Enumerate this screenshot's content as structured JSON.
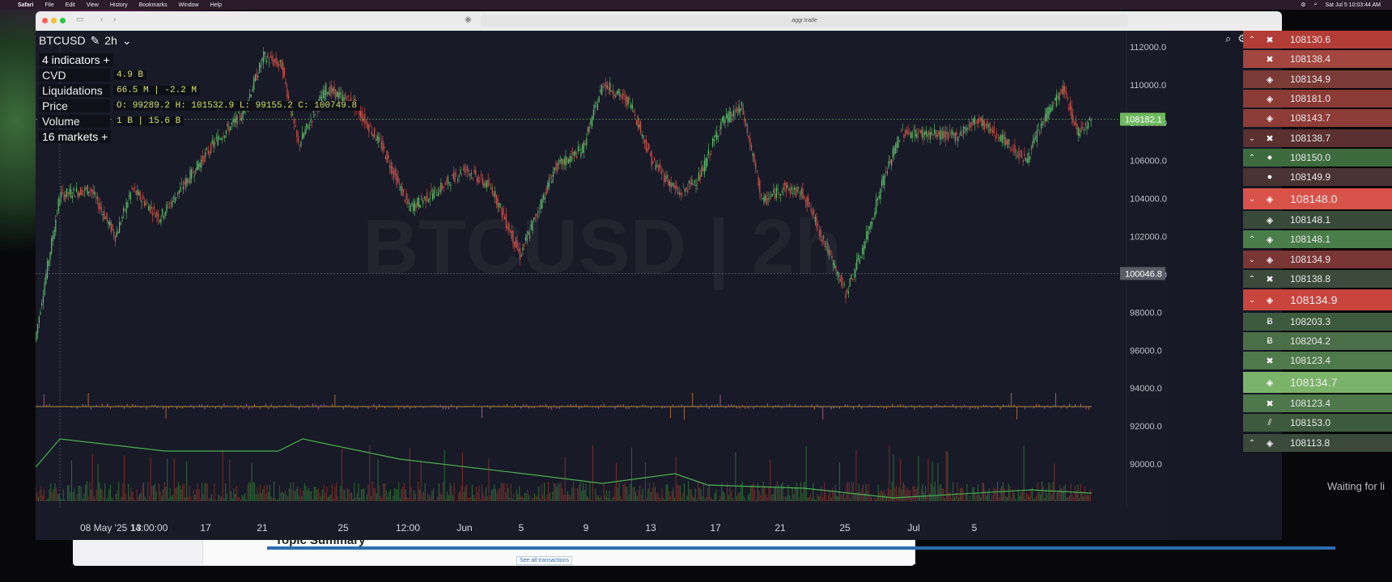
{
  "menubar": {
    "items": [
      "Safari",
      "File",
      "Edit",
      "View",
      "History",
      "Bookmarks",
      "Window",
      "Help"
    ],
    "datetime": "Sat Jul 5  10:03:44 AM"
  },
  "browser": {
    "url": "aggr.trade"
  },
  "chart": {
    "symbol": "BTCUSD",
    "timeframe": "2h",
    "watermark": "BTCUSD  |  2h",
    "indicators_header": "4 indicators",
    "markets_header": "16 markets",
    "indicators": [
      {
        "label": "CVD",
        "value": "4.9 B"
      },
      {
        "label": "Liquidations",
        "value": "66.5 M | -2.2 M"
      },
      {
        "label": "Price",
        "value": "O: 99289.2 H: 101532.9 L: 99155.2 C: 100749.8"
      },
      {
        "label": "Volume",
        "value": "1 B | 15.6 B"
      }
    ],
    "price_labels": [
      "112000.0",
      "110000.0",
      "108000.0",
      "106000.0",
      "104000.0",
      "102000.0",
      "100000.0",
      "98000.0",
      "96000.0",
      "94000.0",
      "92000.0",
      "90000.0"
    ],
    "current_price": "108182.1",
    "crosshair_price": "100046.8",
    "time_labels": [
      "08 May '25  14:00:00",
      "13",
      "17",
      "21",
      "25",
      "12:00",
      "Jun",
      "5",
      "9",
      "13",
      "17",
      "21",
      "25",
      "Jul",
      "5"
    ],
    "colors": {
      "up": "#5fbf6b",
      "down": "#d6524a",
      "bg": "#181a27",
      "cvd": "#4caf50"
    }
  },
  "trades": [
    {
      "dir": "up",
      "ex": "okx",
      "price": "108130.6",
      "bg": "#b23c36"
    },
    {
      "dir": "",
      "ex": "okx",
      "price": "108138.4",
      "bg": "#a3463f"
    },
    {
      "dir": "",
      "ex": "binance",
      "price": "108134.9",
      "bg": "#7a3a36"
    },
    {
      "dir": "",
      "ex": "binance",
      "price": "108181.0",
      "bg": "#8b3b36"
    },
    {
      "dir": "",
      "ex": "binance",
      "price": "108143.7",
      "bg": "#8d3c38"
    },
    {
      "dir": "down",
      "ex": "okx",
      "price": "108138.7",
      "bg": "#5a3030"
    },
    {
      "dir": "up",
      "ex": "coinbase",
      "price": "108150.0",
      "bg": "#3d6b3e"
    },
    {
      "dir": "",
      "ex": "coinbase",
      "price": "108149.9",
      "bg": "#4a3333"
    },
    {
      "dir": "down",
      "ex": "binance",
      "price": "108148.0",
      "bg": "#d9524a",
      "big": true
    },
    {
      "dir": "",
      "ex": "binance",
      "price": "108148.1",
      "bg": "#3a4a3a"
    },
    {
      "dir": "up",
      "ex": "binance",
      "price": "108148.1",
      "bg": "#4a7d4a"
    },
    {
      "dir": "down",
      "ex": "binance",
      "price": "108134.9",
      "bg": "#7a3535"
    },
    {
      "dir": "up",
      "ex": "okx",
      "price": "108138.8",
      "bg": "#3b4a3b"
    },
    {
      "dir": "down",
      "ex": "binance",
      "price": "108134.9",
      "bg": "#c8453e",
      "big": true
    },
    {
      "dir": "",
      "ex": "bitstamp",
      "price": "108203.3",
      "bg": "#3e5a3e"
    },
    {
      "dir": "",
      "ex": "bitstamp",
      "price": "108204.2",
      "bg": "#4a6e47"
    },
    {
      "dir": "",
      "ex": "okx",
      "price": "108123.4",
      "bg": "#4f7a4b"
    },
    {
      "dir": "",
      "ex": "binance",
      "price": "108134.7",
      "bg": "#7cb36a",
      "big": true
    },
    {
      "dir": "",
      "ex": "okx",
      "price": "108123.4",
      "bg": "#4e774b"
    },
    {
      "dir": "",
      "ex": "bitfinex",
      "price": "108153.0",
      "bg": "#3e5a3e"
    },
    {
      "dir": "up",
      "ex": "binance",
      "price": "108113.8",
      "bg": "#3b4a3b"
    }
  ],
  "trades_waiting": "Waiting for li",
  "background_window": {
    "title": "Topic Summary",
    "link": "See all transactions"
  }
}
